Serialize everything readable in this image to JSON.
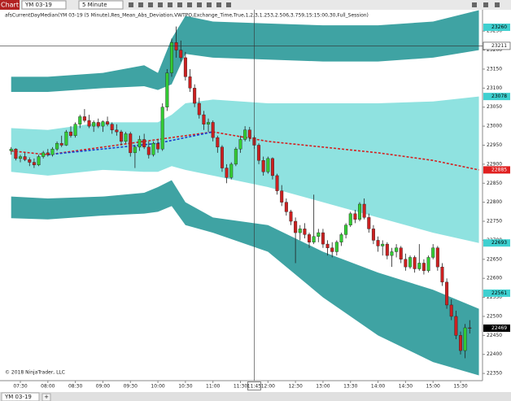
{
  "toolbar": {
    "button": "Chart",
    "instrument": "YM 03-19",
    "interval": "5 Minute"
  },
  "chart_data": {
    "type": "candlestick",
    "indicator_label": "afsCurrentDayMedian(YM 03-19 (5 Minute),Res_Mean_Abs_Deviation,VWTPO,Exchange_Time,True,1,2,3,1.253,2.506,3.759,15:15:00,30,Full_Session)",
    "copyright": "© 2018 NinjaTrader, LLC",
    "up_color": "#33cc33",
    "down_color": "#cc2020",
    "wick_color": "#222222",
    "x": [
      "07:20",
      "07:25",
      "07:30",
      "07:35",
      "07:40",
      "07:45",
      "07:50",
      "07:55",
      "08:00",
      "08:05",
      "08:10",
      "08:15",
      "08:20",
      "08:25",
      "08:30",
      "08:35",
      "08:40",
      "08:45",
      "08:50",
      "08:55",
      "09:00",
      "09:05",
      "09:10",
      "09:15",
      "09:20",
      "09:25",
      "09:30",
      "09:35",
      "09:40",
      "09:45",
      "09:50",
      "09:55",
      "10:00",
      "10:05",
      "10:10",
      "10:15",
      "10:20",
      "10:25",
      "10:30",
      "10:35",
      "10:40",
      "10:45",
      "10:50",
      "10:55",
      "11:00",
      "11:05",
      "11:10",
      "11:15",
      "11:20",
      "11:25",
      "11:30",
      "11:35",
      "11:40",
      "11:45",
      "11:50",
      "11:55",
      "12:00",
      "12:05",
      "12:10",
      "12:15",
      "12:20",
      "12:25",
      "12:30",
      "12:35",
      "12:40",
      "12:45",
      "12:50",
      "12:55",
      "13:00",
      "13:05",
      "13:10",
      "13:15",
      "13:20",
      "13:25",
      "13:30",
      "13:35",
      "13:40",
      "13:45",
      "13:50",
      "13:55",
      "14:00",
      "14:05",
      "14:10",
      "14:15",
      "14:20",
      "14:25",
      "14:30",
      "14:35",
      "14:40",
      "14:45",
      "14:50",
      "14:55",
      "15:00",
      "15:05",
      "15:10",
      "15:15",
      "15:20",
      "15:25",
      "15:30",
      "15:35",
      "15:40"
    ],
    "candles": [
      [
        22935,
        22945,
        22925,
        22940
      ],
      [
        22940,
        22942,
        22910,
        22915
      ],
      [
        22915,
        22925,
        22905,
        22920
      ],
      [
        22920,
        22930,
        22908,
        22912
      ],
      [
        22912,
        22918,
        22895,
        22905
      ],
      [
        22905,
        22915,
        22890,
        22898
      ],
      [
        22898,
        22925,
        22895,
        22920
      ],
      [
        22920,
        22935,
        22915,
        22930
      ],
      [
        22930,
        22940,
        22920,
        22925
      ],
      [
        22925,
        22945,
        22920,
        22940
      ],
      [
        22940,
        22960,
        22935,
        22955
      ],
      [
        22955,
        22975,
        22945,
        22950
      ],
      [
        22950,
        22990,
        22948,
        22985
      ],
      [
        22985,
        23000,
        22970,
        22975
      ],
      [
        22975,
        23010,
        22970,
        23005
      ],
      [
        23005,
        23030,
        22995,
        23025
      ],
      [
        23025,
        23045,
        23010,
        23015
      ],
      [
        23015,
        23030,
        22995,
        23000
      ],
      [
        23000,
        23015,
        22985,
        23010
      ],
      [
        23010,
        23020,
        22995,
        23000
      ],
      [
        23000,
        23015,
        22985,
        23012
      ],
      [
        23012,
        23025,
        23000,
        23005
      ],
      [
        23005,
        23010,
        22980,
        22990
      ],
      [
        22990,
        23005,
        22975,
        22985
      ],
      [
        22985,
        22990,
        22950,
        22960
      ],
      [
        22960,
        22985,
        22955,
        22980
      ],
      [
        22980,
        22985,
        22920,
        22930
      ],
      [
        22930,
        22950,
        22890,
        22945
      ],
      [
        22945,
        22975,
        22935,
        22965
      ],
      [
        22965,
        22980,
        22940,
        22945
      ],
      [
        22945,
        22960,
        22915,
        22925
      ],
      [
        22925,
        22960,
        22920,
        22955
      ],
      [
        22955,
        22965,
        22930,
        22940
      ],
      [
        22940,
        23060,
        22935,
        23050
      ],
      [
        23050,
        23150,
        23040,
        23140
      ],
      [
        23140,
        23230,
        23130,
        23220
      ],
      [
        23220,
        23262,
        23180,
        23200
      ],
      [
        23200,
        23225,
        23170,
        23180
      ],
      [
        23180,
        23195,
        23120,
        23130
      ],
      [
        23130,
        23150,
        23090,
        23100
      ],
      [
        23100,
        23110,
        23050,
        23060
      ],
      [
        23060,
        23075,
        23020,
        23030
      ],
      [
        23030,
        23040,
        22990,
        23005
      ],
      [
        23005,
        23020,
        22985,
        23010
      ],
      [
        23010,
        23015,
        22960,
        22970
      ],
      [
        22970,
        22975,
        22930,
        22945
      ],
      [
        22945,
        22950,
        22880,
        22890
      ],
      [
        22890,
        22900,
        22850,
        22865
      ],
      [
        22865,
        22905,
        22860,
        22900
      ],
      [
        22900,
        22945,
        22895,
        22940
      ],
      [
        22940,
        22975,
        22930,
        22965
      ],
      [
        22965,
        23000,
        22960,
        22990
      ],
      [
        22990,
        22998,
        22960,
        22970
      ],
      [
        22970,
        22975,
        22940,
        22950
      ],
      [
        22950,
        22955,
        22900,
        22910
      ],
      [
        22910,
        22920,
        22870,
        22880
      ],
      [
        22880,
        22920,
        22875,
        22915
      ],
      [
        22915,
        22918,
        22860,
        22870
      ],
      [
        22870,
        22875,
        22820,
        22830
      ],
      [
        22830,
        22845,
        22790,
        22800
      ],
      [
        22800,
        22810,
        22765,
        22775
      ],
      [
        22775,
        22780,
        22740,
        22750
      ],
      [
        22750,
        22760,
        22640,
        22720
      ],
      [
        22720,
        22740,
        22700,
        22730
      ],
      [
        22730,
        22745,
        22705,
        22715
      ],
      [
        22715,
        22720,
        22680,
        22695
      ],
      [
        22695,
        22820,
        22690,
        22710
      ],
      [
        22710,
        22730,
        22695,
        22720
      ],
      [
        22720,
        22730,
        22680,
        22690
      ],
      [
        22690,
        22700,
        22660,
        22680
      ],
      [
        22680,
        22695,
        22655,
        22670
      ],
      [
        22670,
        22700,
        22660,
        22695
      ],
      [
        22695,
        22720,
        22685,
        22715
      ],
      [
        22715,
        22745,
        22705,
        22740
      ],
      [
        22740,
        22775,
        22735,
        22770
      ],
      [
        22770,
        22780,
        22745,
        22755
      ],
      [
        22755,
        22800,
        22750,
        22795
      ],
      [
        22795,
        22810,
        22755,
        22760
      ],
      [
        22760,
        22770,
        22720,
        22730
      ],
      [
        22730,
        22740,
        22690,
        22700
      ],
      [
        22700,
        22710,
        22670,
        22685
      ],
      [
        22685,
        22700,
        22660,
        22690
      ],
      [
        22690,
        22695,
        22650,
        22660
      ],
      [
        22660,
        22680,
        22630,
        22670
      ],
      [
        22670,
        22690,
        22655,
        22680
      ],
      [
        22680,
        22685,
        22640,
        22650
      ],
      [
        22650,
        22665,
        22620,
        22630
      ],
      [
        22630,
        22660,
        22625,
        22655
      ],
      [
        22655,
        22660,
        22615,
        22625
      ],
      [
        22625,
        22690,
        22620,
        22640
      ],
      [
        22640,
        22650,
        22610,
        22620
      ],
      [
        22620,
        22660,
        22615,
        22655
      ],
      [
        22655,
        22690,
        22650,
        22680
      ],
      [
        22680,
        22685,
        22620,
        22630
      ],
      [
        22630,
        22640,
        22580,
        22590
      ],
      [
        22590,
        22600,
        22520,
        22530
      ],
      [
        22530,
        22545,
        22490,
        22500
      ],
      [
        22500,
        22515,
        22440,
        22450
      ],
      [
        22450,
        22460,
        22400,
        22410
      ],
      [
        22410,
        22480,
        22390,
        22470
      ],
      [
        22470,
        22490,
        22455,
        22469
      ]
    ],
    "bands": [
      {
        "color": "#3fa3a3",
        "x": [
          "07:20",
          "08:00",
          "09:00",
          "09:45",
          "10:00",
          "10:15",
          "10:30",
          "11:00",
          "12:00",
          "13:00",
          "14:00",
          "15:00",
          "15:50"
        ],
        "upper": [
          23130,
          23130,
          23140,
          23160,
          23140,
          23230,
          23290,
          23275,
          23270,
          23265,
          23265,
          23275,
          23305
        ],
        "lower": [
          23090,
          23090,
          23100,
          23105,
          23095,
          23110,
          23190,
          23180,
          23175,
          23170,
          23170,
          23180,
          23200
        ]
      },
      {
        "color": "#8fe2e0",
        "x": [
          "07:20",
          "08:00",
          "09:00",
          "09:45",
          "10:00",
          "10:15",
          "10:30",
          "11:00",
          "12:00",
          "13:00",
          "14:00",
          "15:00",
          "15:50"
        ],
        "upper": [
          22995,
          22990,
          23010,
          23010,
          23010,
          23030,
          23060,
          23070,
          23060,
          23060,
          23060,
          23065,
          23078
        ],
        "lower": [
          22880,
          22870,
          22885,
          22880,
          22880,
          22895,
          22885,
          22870,
          22840,
          22800,
          22760,
          22720,
          22693
        ]
      },
      {
        "color": "#3fa3a3",
        "x": [
          "07:20",
          "08:00",
          "09:00",
          "09:45",
          "10:00",
          "10:15",
          "10:30",
          "11:00",
          "12:00",
          "13:00",
          "14:00",
          "15:00",
          "15:50"
        ],
        "upper": [
          22815,
          22810,
          22815,
          22825,
          22840,
          22858,
          22800,
          22760,
          22740,
          22670,
          22615,
          22570,
          22520
        ],
        "lower": [
          22758,
          22755,
          22765,
          22770,
          22775,
          22790,
          22740,
          22720,
          22670,
          22550,
          22450,
          22380,
          22345
        ]
      }
    ],
    "median": [
      {
        "color": "#d42020",
        "x": [
          "07:20",
          "08:00",
          "11:00",
          "12:00",
          "13:00",
          "14:00",
          "15:00",
          "15:50"
        ],
        "values": [
          22935,
          22925,
          22985,
          22960,
          22945,
          22930,
          22910,
          22885
        ]
      },
      {
        "color": "#1a3fd0",
        "x": [
          "08:00",
          "09:00",
          "10:00",
          "11:00"
        ],
        "values": [
          22925,
          22940,
          22955,
          22985
        ]
      }
    ],
    "price_tags": [
      {
        "value": 23260,
        "color": "#3fd0d0",
        "text_color": "#000000"
      },
      {
        "value": 23078,
        "color": "#3fd0d0",
        "text_color": "#000000"
      },
      {
        "value": 22885,
        "color": "#e02020",
        "text_color": "#ffffff"
      },
      {
        "value": 22693,
        "color": "#3fd0d0",
        "text_color": "#000000"
      },
      {
        "value": 22561,
        "color": "#3fd0d0",
        "text_color": "#000000"
      },
      {
        "value": 22469,
        "color": "#000000",
        "text_color": "#ffffff"
      }
    ],
    "crosshair": {
      "price": 23211,
      "time": "11:45"
    },
    "ylim": [
      22331,
      23306
    ],
    "yticks": [
      23250,
      23200,
      23150,
      23100,
      23050,
      23000,
      22950,
      22900,
      22850,
      22800,
      22750,
      22700,
      22650,
      22600,
      22550,
      22500,
      22450,
      22400,
      22350
    ],
    "xticks": [
      "07:30",
      "08:00",
      "08:30",
      "09:00",
      "09:30",
      "10:00",
      "10:30",
      "11:00",
      "11:30",
      "12:00",
      "12:30",
      "13:00",
      "13:30",
      "14:00",
      "14:30",
      "15:00",
      "15:30"
    ]
  },
  "tabs": {
    "active": "YM 03-19",
    "add": "+"
  }
}
